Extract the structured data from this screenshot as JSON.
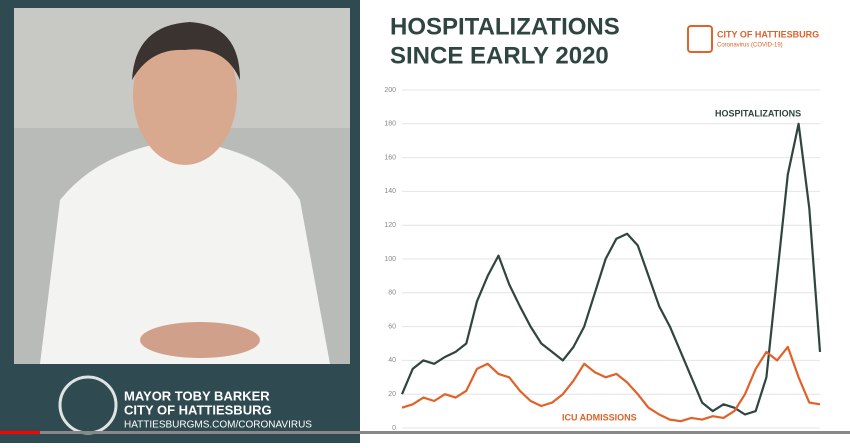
{
  "caption": {
    "name": "MAYOR TOBY BARKER",
    "city": "CITY OF HATTIESBURG",
    "url": "HATTIESBURGMS.COM/CORONAVIRUS"
  },
  "logo": {
    "name": "CITY OF HATTIESBURG",
    "subtitle": "Coronavirus (COVID-19)"
  },
  "chart_data": {
    "type": "line",
    "title": [
      "HOSPITALIZATIONS",
      "SINCE EARLY 2020"
    ],
    "annotations": [
      "HOSPITALIZATIONS",
      "ICU ADMISSIONS"
    ],
    "categories": [
      null,
      null,
      null,
      null,
      null,
      null,
      null,
      null,
      null,
      null,
      null,
      null,
      null,
      null,
      null,
      null,
      null,
      null,
      null,
      null,
      null,
      null,
      null,
      null,
      null,
      null,
      null,
      null,
      null,
      null,
      null,
      null,
      null,
      null,
      null,
      null,
      null,
      null,
      null,
      null
    ],
    "series": [
      {
        "name": "HOSPITALIZATIONS",
        "color": "#2f4540",
        "values": [
          20,
          35,
          40,
          38,
          42,
          45,
          50,
          75,
          90,
          102,
          85,
          72,
          60,
          50,
          45,
          40,
          48,
          60,
          80,
          100,
          112,
          115,
          108,
          90,
          72,
          60,
          45,
          30,
          15,
          10,
          14,
          12,
          8,
          10,
          30,
          90,
          150,
          180,
          130,
          45
        ]
      },
      {
        "name": "ICU ADMISSIONS",
        "color": "#e0622a",
        "values": [
          12,
          14,
          18,
          16,
          20,
          18,
          22,
          35,
          38,
          32,
          30,
          22,
          16,
          13,
          15,
          20,
          28,
          38,
          33,
          30,
          32,
          27,
          20,
          12,
          8,
          5,
          4,
          6,
          5,
          7,
          6,
          10,
          20,
          35,
          45,
          40,
          48,
          30,
          15,
          14
        ]
      }
    ],
    "ylim": [
      0,
      200
    ],
    "yticks": [
      0,
      20,
      40,
      60,
      80,
      100,
      120,
      140,
      160,
      180,
      200
    ],
    "grid": true
  }
}
